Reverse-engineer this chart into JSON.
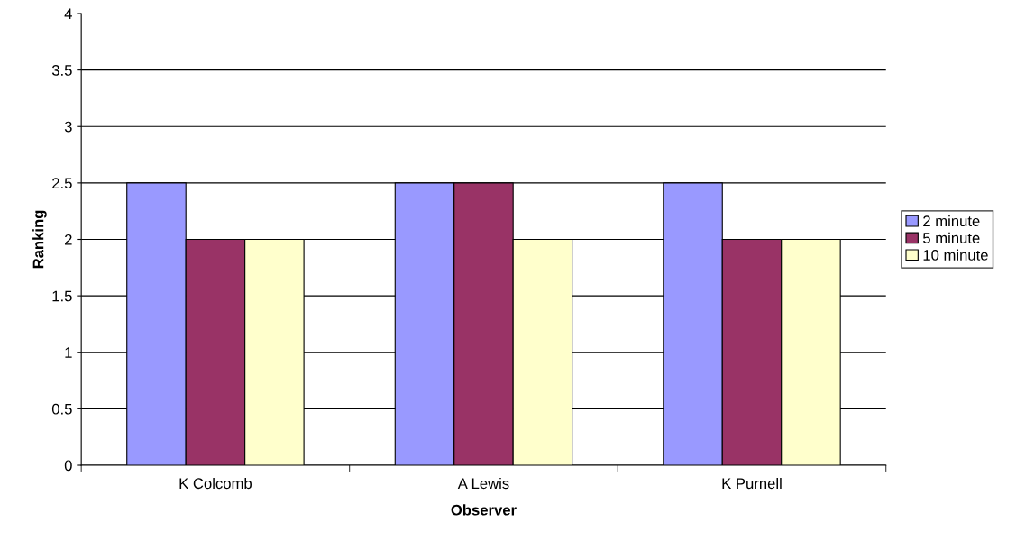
{
  "chart_data": {
    "type": "bar",
    "xlabel": "Observer",
    "ylabel": "Ranking",
    "categories": [
      "K Colcomb",
      "A Lewis",
      "K Purnell"
    ],
    "series": [
      {
        "name": "2 minute",
        "color": "#9999ff",
        "values": [
          2.5,
          2.5,
          2.5
        ]
      },
      {
        "name": "5 minute",
        "color": "#993366",
        "values": [
          2,
          2.5,
          2
        ]
      },
      {
        "name": "10 minute",
        "color": "#ffffcc",
        "values": [
          2,
          2,
          2
        ]
      }
    ],
    "ylim": [
      0,
      4
    ],
    "yticks": [
      0,
      0.5,
      1,
      1.5,
      2,
      2.5,
      3,
      3.5,
      4
    ],
    "grid": "y",
    "legend": "right"
  }
}
